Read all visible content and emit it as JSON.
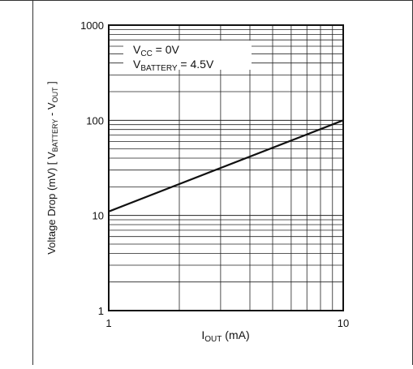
{
  "chart_data": {
    "type": "line",
    "title": "",
    "xscale": "log",
    "yscale": "log",
    "xlim": [
      1,
      10
    ],
    "ylim": [
      1,
      1000
    ],
    "grid": true,
    "x_ticks": [
      "1",
      "10"
    ],
    "y_ticks": [
      "1",
      "10",
      "100",
      "1000"
    ],
    "xlabel": {
      "main": "I",
      "sub": "OUT",
      "unit": " (mA)"
    },
    "ylabel": {
      "p1": "Voltage Drop (mV) [ V",
      "s1": "BATTERY",
      "p2": " - V",
      "s2": "OUT",
      "p3": " ]"
    },
    "annotations": [
      {
        "main": "V",
        "sub": "CC",
        "rest": " = 0V"
      },
      {
        "main": "V",
        "sub": "BATTERY",
        "rest": " = 4.5V"
      }
    ],
    "series": [
      {
        "x": [
          1,
          10
        ],
        "y": [
          11,
          100
        ]
      }
    ]
  },
  "style": {
    "line_color": "#111111",
    "grid_color": "#222222",
    "frame_color": "#333333"
  }
}
